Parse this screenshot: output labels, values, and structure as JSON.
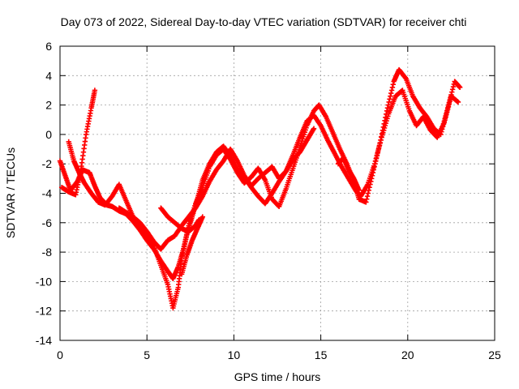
{
  "chart_data": {
    "type": "scatter",
    "title": "Day 073 of 2022, Sidereal Day-to-day VTEC variation (SDTVAR) for receiver chti",
    "xlabel": "GPS time / hours",
    "ylabel": "SDTVAR / TECUs",
    "xlim": [
      0,
      25
    ],
    "ylim": [
      -14,
      6
    ],
    "xticks": [
      0,
      5,
      10,
      15,
      20,
      25
    ],
    "yticks": [
      -14,
      -12,
      -10,
      -8,
      -6,
      -4,
      -2,
      0,
      2,
      4,
      6
    ],
    "grid": true,
    "marker": "+",
    "color": "#ff0000",
    "series": [
      {
        "x": [
          0.0,
          0.3,
          0.6,
          1.0,
          1.3,
          1.7,
          2.0,
          2.3,
          2.7,
          3.0,
          3.4,
          3.8,
          4.2,
          4.6,
          5.0,
          5.4,
          5.8,
          6.2,
          6.5,
          6.8,
          7.1,
          7.4,
          7.8,
          8.2,
          8.6,
          9.0,
          9.4,
          9.8,
          10.2,
          10.6,
          11.0,
          11.4,
          11.8,
          12.2,
          12.6,
          13.0,
          13.4,
          13.8,
          14.2,
          14.6,
          14.9,
          15.3,
          15.7,
          16.1,
          16.5,
          16.9,
          17.2,
          17.6,
          18.0,
          18.4,
          18.8,
          19.2,
          19.5,
          19.9,
          20.3,
          20.7,
          21.1,
          21.5,
          21.9,
          22.3,
          22.7,
          23.0
        ],
        "y": [
          -1.8,
          -2.8,
          -3.8,
          -3.2,
          -2.4,
          -2.6,
          -3.5,
          -4.3,
          -4.8,
          -4.9,
          -5.2,
          -5.4,
          -5.9,
          -6.5,
          -7.2,
          -7.8,
          -8.6,
          -9.3,
          -9.8,
          -9.0,
          -7.8,
          -6.2,
          -4.7,
          -3.6,
          -2.2,
          -1.4,
          -1.0,
          -1.7,
          -2.6,
          -3.3,
          -2.9,
          -2.3,
          -3.1,
          -4.4,
          -4.9,
          -3.7,
          -2.3,
          -0.9,
          0.6,
          1.6,
          2.0,
          1.2,
          0.1,
          -1.0,
          -2.0,
          -3.2,
          -4.4,
          -4.6,
          -2.6,
          -0.6,
          1.6,
          3.6,
          4.4,
          3.8,
          2.6,
          1.8,
          1.2,
          0.4,
          0.0,
          1.8,
          3.6,
          3.2
        ]
      },
      {
        "x": [
          0.1,
          0.5,
          0.9,
          1.2,
          1.5,
          1.8,
          2.0
        ],
        "y": [
          -3.6,
          -3.9,
          -4.1,
          -2.4,
          0.0,
          1.8,
          3.0
        ]
      },
      {
        "x": [
          0.5,
          0.8,
          1.1,
          1.4,
          1.8,
          2.2,
          2.6,
          3.0,
          3.4,
          3.8,
          4.2,
          4.6,
          5.0,
          5.4,
          5.8,
          6.2,
          6.5,
          6.8,
          7.0,
          7.3,
          7.6,
          7.9,
          8.2,
          8.6,
          9.0,
          9.4,
          9.8,
          10.2,
          10.6,
          11.0,
          11.4,
          11.8,
          12.2,
          12.6,
          13.0,
          13.4,
          13.8,
          14.2,
          14.6,
          15.0,
          15.4,
          15.8,
          16.2,
          16.6,
          17.0,
          17.3,
          17.7,
          18.1,
          18.5,
          18.9,
          19.3,
          19.7,
          20.1,
          20.5,
          20.9,
          21.3,
          21.7,
          22.1,
          22.5,
          22.9
        ],
        "y": [
          -0.5,
          -1.8,
          -2.6,
          -3.3,
          -4.0,
          -4.6,
          -4.8,
          -4.2,
          -3.4,
          -4.5,
          -5.6,
          -6.3,
          -6.9,
          -7.6,
          -8.9,
          -10.2,
          -11.8,
          -10.4,
          -8.4,
          -6.8,
          -5.6,
          -4.4,
          -3.1,
          -2.0,
          -1.2,
          -0.8,
          -1.5,
          -2.4,
          -2.9,
          -3.6,
          -4.2,
          -4.7,
          -4.0,
          -3.2,
          -2.5,
          -1.4,
          -0.2,
          0.9,
          1.3,
          0.6,
          -0.4,
          -1.3,
          -2.2,
          -3.0,
          -3.8,
          -4.2,
          -3.4,
          -2.0,
          -0.2,
          1.4,
          2.6,
          3.0,
          1.6,
          0.6,
          1.2,
          0.3,
          -0.2,
          0.8,
          2.6,
          2.2
        ]
      },
      {
        "x": [
          3.4,
          3.8,
          4.2,
          4.6,
          5.0,
          5.4,
          5.8,
          6.2,
          6.6,
          7.0,
          7.4,
          7.8,
          8.2,
          8.6,
          9.0,
          9.4,
          9.8,
          10.2,
          10.6,
          11.0,
          11.4,
          11.8,
          12.2,
          12.6,
          13.0,
          13.4,
          13.8,
          14.2,
          14.6
        ],
        "y": [
          -5.0,
          -5.3,
          -5.6,
          -6.0,
          -6.6,
          -7.3,
          -7.8,
          -7.2,
          -6.9,
          -6.2,
          -5.6,
          -5.0,
          -4.2,
          -3.2,
          -2.4,
          -1.8,
          -1.0,
          -1.8,
          -2.8,
          -3.5,
          -3.0,
          -2.6,
          -2.2,
          -3.0,
          -2.5,
          -1.7,
          -1.2,
          -0.4,
          0.4
        ]
      },
      {
        "x": [
          5.8,
          6.2,
          6.6,
          7.0,
          7.4,
          7.8,
          8.0
        ],
        "y": [
          -5.0,
          -5.6,
          -6.0,
          -6.4,
          -6.6,
          -6.2,
          -5.8
        ]
      },
      {
        "x": [
          7.0,
          7.3,
          7.6,
          7.9,
          8.2
        ],
        "y": [
          -9.5,
          -8.2,
          -7.2,
          -6.4,
          -5.6
        ]
      },
      {
        "x": [
          16.0,
          16.3,
          16.6,
          16.9,
          17.2
        ],
        "y": [
          -2.0,
          -1.6,
          -2.4,
          -3.0,
          -3.8
        ]
      }
    ]
  }
}
